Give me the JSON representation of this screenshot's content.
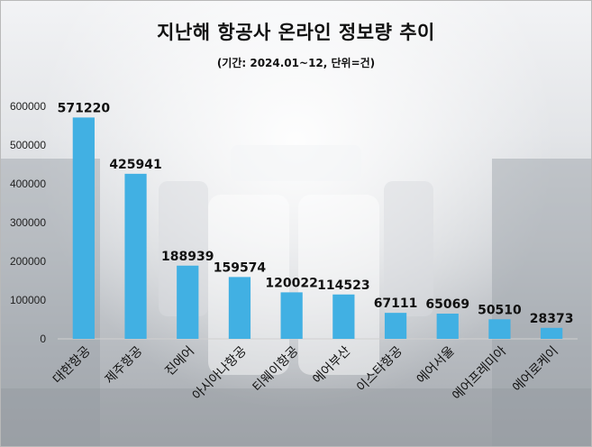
{
  "chart_data": {
    "type": "bar",
    "title": "지난해 항공사 온라인 정보량 추이",
    "subtitle": "(기간: 2024.01~12, 단위=건)",
    "categories": [
      "대한항공",
      "제주항공",
      "진에어",
      "아시아나항공",
      "티웨이항공",
      "에어부산",
      "이스타항공",
      "에어서울",
      "에어프레미아",
      "에어로케이"
    ],
    "values": [
      571220,
      425941,
      188939,
      159574,
      120022,
      114523,
      67111,
      65069,
      50510,
      28373
    ],
    "yticks": [
      "0",
      "100000",
      "200000",
      "300000",
      "400000",
      "500000",
      "600000"
    ],
    "ylim": [
      0,
      600000
    ],
    "grid": false,
    "legend": "none",
    "bar_color": "#41B0E3"
  }
}
